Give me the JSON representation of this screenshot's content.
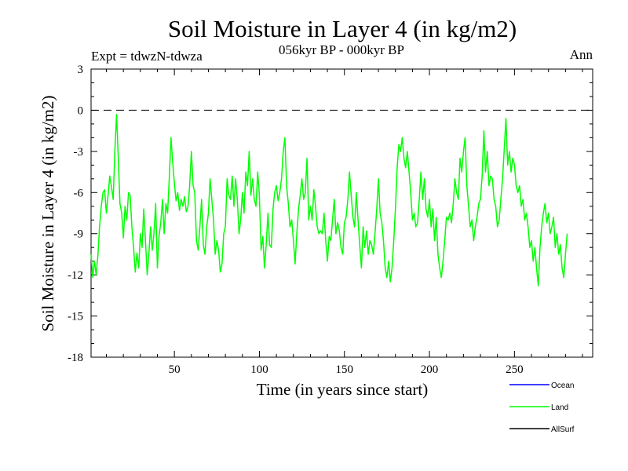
{
  "chart_data": {
    "type": "line",
    "title": "Soil Moisture in Layer 4 (in kg/m2)",
    "subtitle": "056kyr BP - 000kyr BP",
    "experiment": "Expt = tdwzN-tdwza",
    "period": "Ann",
    "xlabel": "Time (in years since start)",
    "ylabel": "Soil Moisture in Layer 4 (in kg/m2)",
    "xlim": [
      1,
      296
    ],
    "ylim": [
      -18,
      3
    ],
    "xticks": [
      50,
      100,
      150,
      200,
      250
    ],
    "yticks": [
      3,
      0,
      -3,
      -6,
      -9,
      -12,
      -15,
      -18
    ],
    "zero_line": true,
    "legend": [
      {
        "name": "Ocean",
        "color": "#0000ff"
      },
      {
        "name": "Land",
        "color": "#00ff00"
      },
      {
        "name": "AllSurf",
        "color": "#000000"
      }
    ],
    "series": [
      {
        "name": "Land",
        "color": "#00ff00",
        "x_start": 1,
        "x_step": 1,
        "values": [
          -10.5,
          -12.2,
          -11.0,
          -12.0,
          -10.6,
          -8.5,
          -7.0,
          -6.0,
          -5.8,
          -7.5,
          -6.2,
          -4.8,
          -5.6,
          -6.5,
          -3.0,
          -0.3,
          -3.5,
          -6.8,
          -7.5,
          -9.3,
          -7.0,
          -8.0,
          -6.0,
          -6.2,
          -8.5,
          -10.0,
          -11.8,
          -10.4,
          -11.5,
          -9.0,
          -10.0,
          -7.2,
          -9.5,
          -12.0,
          -10.5,
          -8.5,
          -10.2,
          -9.0,
          -6.8,
          -11.5,
          -9.2,
          -8.2,
          -6.5,
          -9.0,
          -6.8,
          -7.5,
          -5.0,
          -2.0,
          -3.8,
          -5.3,
          -6.6,
          -6.0,
          -7.3,
          -6.5,
          -7.0,
          -6.3,
          -7.4,
          -7.0,
          -5.5,
          -3.0,
          -5.5,
          -6.0,
          -9.5,
          -10.2,
          -8.5,
          -6.5,
          -9.8,
          -10.5,
          -8.5,
          -7.5,
          -5.0,
          -6.5,
          -8.0,
          -10.5,
          -9.5,
          -10.2,
          -11.8,
          -11.2,
          -9.0,
          -8.5,
          -5.0,
          -6.2,
          -6.5,
          -4.8,
          -7.0,
          -5.0,
          -6.5,
          -9.0,
          -8.0,
          -6.0,
          -7.5,
          -4.5,
          -5.5,
          -3.0,
          -6.2,
          -5.0,
          -6.5,
          -7.0,
          -4.5,
          -6.2,
          -10.2,
          -9.2,
          -11.5,
          -9.8,
          -7.5,
          -9.8,
          -10.0,
          -7.2,
          -6.0,
          -5.5,
          -6.6,
          -6.0,
          -5.0,
          -3.0,
          -2.0,
          -5.5,
          -6.8,
          -8.5,
          -8.0,
          -9.5,
          -11.2,
          -9.0,
          -7.2,
          -6.2,
          -5.0,
          -6.5,
          -6.0,
          -3.5,
          -8.0,
          -7.0,
          -8.0,
          -5.8,
          -7.0,
          -8.5,
          -9.0,
          -8.8,
          -9.0,
          -7.5,
          -9.5,
          -11.0,
          -9.2,
          -9.5,
          -8.0,
          -6.5,
          -9.0,
          -8.2,
          -8.8,
          -10.0,
          -10.5,
          -8.2,
          -7.8,
          -6.5,
          -4.5,
          -6.2,
          -7.8,
          -8.5,
          -6.0,
          -8.0,
          -9.8,
          -11.5,
          -8.5,
          -10.0,
          -8.8,
          -10.5,
          -9.5,
          -9.8,
          -10.5,
          -9.0,
          -7.2,
          -5.0,
          -7.5,
          -8.2,
          -9.6,
          -11.5,
          -12.2,
          -11.0,
          -12.5,
          -11.5,
          -9.5,
          -7.2,
          -4.2,
          -2.5,
          -3.0,
          -2.0,
          -3.5,
          -4.2,
          -3.0,
          -4.5,
          -6.0,
          -8.0,
          -7.5,
          -8.5,
          -8.2,
          -6.5,
          -4.5,
          -6.5,
          -5.0,
          -7.2,
          -7.8,
          -6.5,
          -8.5,
          -7.2,
          -9.5,
          -7.8,
          -10.5,
          -11.5,
          -12.2,
          -11.0,
          -9.5,
          -7.8,
          -8.0,
          -7.5,
          -8.2,
          -6.8,
          -5.0,
          -6.0,
          -6.5,
          -3.5,
          -4.5,
          -3.0,
          -2.0,
          -5.5,
          -7.0,
          -8.5,
          -8.0,
          -9.5,
          -8.5,
          -7.8,
          -6.8,
          -6.5,
          -4.8,
          -1.5,
          -4.5,
          -3.0,
          -5.5,
          -4.8,
          -5.0,
          -6.5,
          -7.0,
          -8.5,
          -8.0,
          -6.5,
          -5.0,
          -2.8,
          -0.6,
          -4.0,
          -3.0,
          -4.5,
          -3.5,
          -4.0,
          -5.5,
          -6.0,
          -5.5,
          -7.0,
          -6.5,
          -8.0,
          -7.5,
          -8.5,
          -10.0,
          -9.5,
          -11.0,
          -10.0,
          -11.5,
          -12.8,
          -10.0,
          -8.5,
          -7.5,
          -6.8,
          -8.2,
          -7.5,
          -9.0,
          -8.5,
          -7.8,
          -10.0,
          -9.0,
          -10.5,
          -9.8,
          -11.5,
          -12.2,
          -10.5,
          -9.0
        ]
      }
    ]
  }
}
